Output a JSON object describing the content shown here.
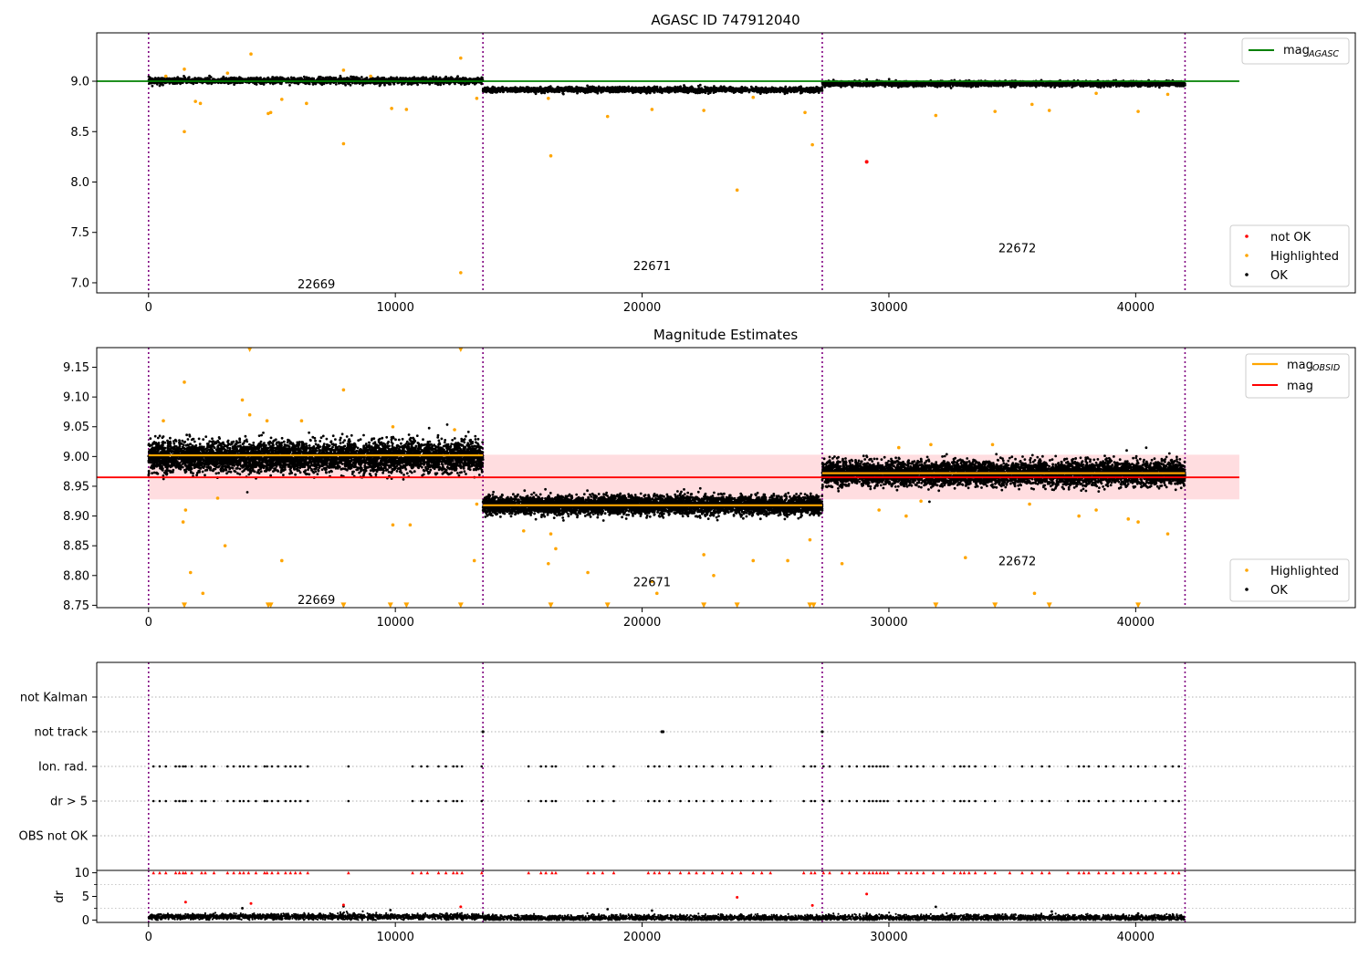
{
  "chart_data": [
    {
      "type": "scatter",
      "title": "AGASC ID 747912040",
      "xlim": [
        -2100,
        48900
      ],
      "ylim": [
        6.9,
        9.48
      ],
      "yticks": [
        7.0,
        7.5,
        8.0,
        8.5,
        9.0
      ],
      "ytick_labels": [
        "7.0",
        "7.5",
        "8.0",
        "8.5",
        "9.0"
      ],
      "xticks": [
        0,
        10000,
        20000,
        30000,
        40000
      ],
      "xtick_labels": [
        "0",
        "10000",
        "20000",
        "30000",
        "40000"
      ],
      "obsid_boundaries": [
        0,
        13550,
        27300,
        42000
      ],
      "obsid_labels": [
        {
          "text": "22669",
          "x": 6800,
          "y": 6.99
        },
        {
          "text": "22671",
          "x": 20400,
          "y": 7.17
        },
        {
          "text": "22672",
          "x": 35200,
          "y": 7.35
        }
      ],
      "reference_line": {
        "name": "mag_AGASC",
        "value": 9.0,
        "x_range": [
          -2100,
          44200
        ],
        "color": "#008000"
      },
      "ok_bands": [
        {
          "x_range": [
            0,
            13550
          ],
          "center": 9.005,
          "spread": 0.03
        },
        {
          "x_range": [
            13550,
            27300
          ],
          "center": 8.915,
          "spread": 0.025
        },
        {
          "x_range": [
            27300,
            42000
          ],
          "center": 8.975,
          "spread": 0.025
        }
      ],
      "not_ok_points": [
        {
          "x": 29100,
          "y": 8.2
        }
      ],
      "highlighted_points": [
        {
          "x": 4150,
          "y": 9.27
        },
        {
          "x": 12650,
          "y": 9.23
        },
        {
          "x": 1450,
          "y": 9.12
        },
        {
          "x": 7900,
          "y": 9.11
        },
        {
          "x": 12650,
          "y": 7.1
        },
        {
          "x": 1450,
          "y": 8.5
        },
        {
          "x": 7900,
          "y": 8.38
        },
        {
          "x": 16300,
          "y": 8.26
        },
        {
          "x": 26900,
          "y": 8.37
        },
        {
          "x": 23850,
          "y": 7.92
        },
        {
          "x": 4850,
          "y": 8.68
        },
        {
          "x": 4950,
          "y": 8.69
        },
        {
          "x": 9850,
          "y": 8.73
        },
        {
          "x": 10450,
          "y": 8.72
        },
        {
          "x": 18600,
          "y": 8.65
        },
        {
          "x": 20400,
          "y": 8.72
        },
        {
          "x": 22500,
          "y": 8.71
        },
        {
          "x": 26600,
          "y": 8.69
        },
        {
          "x": 31900,
          "y": 8.66
        },
        {
          "x": 34300,
          "y": 8.7
        },
        {
          "x": 36500,
          "y": 8.71
        },
        {
          "x": 40100,
          "y": 8.7
        },
        {
          "x": 2100,
          "y": 8.78
        },
        {
          "x": 5400,
          "y": 8.82
        },
        {
          "x": 6400,
          "y": 8.78
        },
        {
          "x": 35800,
          "y": 8.77
        },
        {
          "x": 16200,
          "y": 8.83
        },
        {
          "x": 24500,
          "y": 8.84
        },
        {
          "x": 700,
          "y": 9.05
        },
        {
          "x": 3200,
          "y": 9.08
        },
        {
          "x": 9000,
          "y": 9.05
        },
        {
          "x": 1900,
          "y": 8.8
        },
        {
          "x": 13300,
          "y": 8.83
        },
        {
          "x": 38400,
          "y": 8.88
        },
        {
          "x": 41300,
          "y": 8.87
        }
      ],
      "legends": [
        {
          "location": "upper-right",
          "entries": [
            {
              "label": "mag",
              "sub": "AGASC",
              "kind": "line",
              "color": "#008000"
            }
          ]
        },
        {
          "location": "lower-right",
          "entries": [
            {
              "label": "not OK",
              "kind": "dot",
              "color": "#ff0000"
            },
            {
              "label": "Highlighted",
              "kind": "dot",
              "color": "#ffa500"
            },
            {
              "label": "OK",
              "kind": "dot",
              "color": "#000000"
            }
          ]
        }
      ]
    },
    {
      "type": "scatter",
      "title": "Magnitude Estimates",
      "xlim": [
        -2100,
        48900
      ],
      "ylim": [
        8.746,
        9.183
      ],
      "yticks": [
        8.75,
        8.8,
        8.85,
        8.9,
        8.95,
        9.0,
        9.05,
        9.1,
        9.15
      ],
      "ytick_labels": [
        "8.75",
        "8.80",
        "8.85",
        "8.90",
        "8.95",
        "9.00",
        "9.05",
        "9.10",
        "9.15"
      ],
      "xticks": [
        0,
        10000,
        20000,
        30000,
        40000
      ],
      "xtick_labels": [
        "0",
        "10000",
        "20000",
        "30000",
        "40000"
      ],
      "obsid_boundaries": [
        0,
        13550,
        27300,
        42000
      ],
      "obsid_labels": [
        {
          "text": "22669",
          "x": 6800,
          "y": 8.76
        },
        {
          "text": "22671",
          "x": 20400,
          "y": 8.79
        },
        {
          "text": "22672",
          "x": 35200,
          "y": 8.825
        }
      ],
      "mag_line": {
        "name": "mag",
        "value": 8.965,
        "x_range": [
          -2100,
          44200
        ],
        "color": "#ff0000"
      },
      "mag_band": {
        "low": 8.928,
        "high": 9.003,
        "x_range": [
          0,
          44200
        ],
        "color": "#ffdde0"
      },
      "obsid_mags": [
        {
          "x_range": [
            0,
            13550
          ],
          "value": 9.002
        },
        {
          "x_range": [
            13550,
            27300
          ],
          "value": 8.918
        },
        {
          "x_range": [
            27300,
            42000
          ],
          "value": 8.972
        }
      ],
      "ok_bands": [
        {
          "x_range": [
            0,
            13550
          ],
          "center": 9.0,
          "spread": 0.025
        },
        {
          "x_range": [
            13550,
            27300
          ],
          "center": 8.918,
          "spread": 0.015
        },
        {
          "x_range": [
            27300,
            42000
          ],
          "center": 8.972,
          "spread": 0.02
        }
      ],
      "highlighted_points": [
        {
          "x": 1450,
          "y": 9.125
        },
        {
          "x": 3800,
          "y": 9.095
        },
        {
          "x": 4100,
          "y": 9.07
        },
        {
          "x": 7900,
          "y": 9.112
        },
        {
          "x": 600,
          "y": 9.06
        },
        {
          "x": 4800,
          "y": 9.06
        },
        {
          "x": 6200,
          "y": 9.06
        },
        {
          "x": 9900,
          "y": 9.05
        },
        {
          "x": 12400,
          "y": 9.045
        },
        {
          "x": 1500,
          "y": 8.91
        },
        {
          "x": 1400,
          "y": 8.89
        },
        {
          "x": 3100,
          "y": 8.85
        },
        {
          "x": 1700,
          "y": 8.805
        },
        {
          "x": 2200,
          "y": 8.77
        },
        {
          "x": 5400,
          "y": 8.825
        },
        {
          "x": 9900,
          "y": 8.885
        },
        {
          "x": 10600,
          "y": 8.885
        },
        {
          "x": 13200,
          "y": 8.825
        },
        {
          "x": 15200,
          "y": 8.875
        },
        {
          "x": 16300,
          "y": 8.87
        },
        {
          "x": 16500,
          "y": 8.845
        },
        {
          "x": 16200,
          "y": 8.82
        },
        {
          "x": 17800,
          "y": 8.805
        },
        {
          "x": 20400,
          "y": 8.79
        },
        {
          "x": 20600,
          "y": 8.77
        },
        {
          "x": 22500,
          "y": 8.835
        },
        {
          "x": 22900,
          "y": 8.8
        },
        {
          "x": 24500,
          "y": 8.825
        },
        {
          "x": 25900,
          "y": 8.825
        },
        {
          "x": 26800,
          "y": 8.86
        },
        {
          "x": 28100,
          "y": 8.82
        },
        {
          "x": 29600,
          "y": 8.91
        },
        {
          "x": 30700,
          "y": 8.9
        },
        {
          "x": 31300,
          "y": 8.925
        },
        {
          "x": 33100,
          "y": 8.83
        },
        {
          "x": 35700,
          "y": 8.92
        },
        {
          "x": 35900,
          "y": 8.77
        },
        {
          "x": 37700,
          "y": 8.9
        },
        {
          "x": 38400,
          "y": 8.91
        },
        {
          "x": 39700,
          "y": 8.895
        },
        {
          "x": 40100,
          "y": 8.89
        },
        {
          "x": 41300,
          "y": 8.87
        },
        {
          "x": 31700,
          "y": 9.02
        },
        {
          "x": 34200,
          "y": 9.02
        },
        {
          "x": 30400,
          "y": 9.015
        },
        {
          "x": 13300,
          "y": 8.92
        },
        {
          "x": 2800,
          "y": 8.93
        }
      ],
      "clipped_markers": [
        {
          "x": 4100,
          "y": 9.18
        },
        {
          "x": 12650,
          "y": 9.18
        },
        {
          "x": 1450,
          "y": 8.75
        },
        {
          "x": 4850,
          "y": 8.75
        },
        {
          "x": 4950,
          "y": 8.75
        },
        {
          "x": 7900,
          "y": 8.75
        },
        {
          "x": 9800,
          "y": 8.75
        },
        {
          "x": 10450,
          "y": 8.75
        },
        {
          "x": 12650,
          "y": 8.75
        },
        {
          "x": 16300,
          "y": 8.75
        },
        {
          "x": 18600,
          "y": 8.75
        },
        {
          "x": 22500,
          "y": 8.75
        },
        {
          "x": 23850,
          "y": 8.75
        },
        {
          "x": 26800,
          "y": 8.75
        },
        {
          "x": 26950,
          "y": 8.75
        },
        {
          "x": 31900,
          "y": 8.75
        },
        {
          "x": 34300,
          "y": 8.75
        },
        {
          "x": 36500,
          "y": 8.75
        },
        {
          "x": 40100,
          "y": 8.75
        }
      ],
      "legends": [
        {
          "location": "upper-right",
          "entries": [
            {
              "label": "mag",
              "sub": "OBSID",
              "kind": "line",
              "color": "#ffa500"
            },
            {
              "label": "mag",
              "kind": "line",
              "color": "#ff0000"
            }
          ]
        },
        {
          "location": "lower-right",
          "entries": [
            {
              "label": "Highlighted",
              "kind": "dot",
              "color": "#ffa500"
            },
            {
              "label": "OK",
              "kind": "dot",
              "color": "#000000"
            }
          ]
        }
      ]
    },
    {
      "type": "scatter",
      "title": "",
      "xlim": [
        -2100,
        48900
      ],
      "categories": [
        "not Kalman",
        "not track",
        "Ion. rad.",
        "dr > 5",
        "OBS not OK"
      ],
      "obsid_boundaries": [
        0,
        13550,
        27300,
        42000
      ],
      "flag_points": {
        "not track": [
          13550,
          20800,
          20850,
          27300
        ],
        "Ion. rad.": [
          200,
          450,
          700,
          1100,
          1250,
          1400,
          1500,
          1750,
          2150,
          2300,
          2650,
          3200,
          3450,
          3700,
          3850,
          4050,
          4350,
          4700,
          4800,
          5000,
          5250,
          5550,
          5750,
          5950,
          6150,
          6450,
          8100,
          10700,
          11050,
          11300,
          11750,
          12050,
          12350,
          12500,
          12700,
          13500,
          15400,
          15900,
          16100,
          16350,
          16500,
          17800,
          18050,
          18400,
          18850,
          20250,
          20500,
          20700,
          21100,
          21550,
          21900,
          22200,
          22500,
          22850,
          23250,
          23650,
          24000,
          24500,
          24850,
          25200,
          26550,
          26850,
          27000,
          27350,
          27600,
          28100,
          28400,
          28700,
          29000,
          29200,
          29350,
          29500,
          29650,
          29800,
          29950,
          30400,
          30700,
          30900,
          31150,
          31400,
          31800,
          32200,
          32650,
          32900,
          33050,
          33250,
          33500,
          33900,
          34300,
          34900,
          35400,
          35800,
          36200,
          36500,
          37250,
          37700,
          37900,
          38100,
          38500,
          38800,
          39100,
          39500,
          39800,
          40100,
          40400,
          40800,
          41200,
          41500,
          41750
        ]
      },
      "legends": []
    },
    {
      "type": "scatter",
      "title": "",
      "ylabel": "dr",
      "xlim": [
        -2100,
        48900
      ],
      "ylim": [
        -0.5,
        10.5
      ],
      "yticks": [
        0,
        5,
        10
      ],
      "ytick_labels": [
        "0",
        "5",
        "10"
      ],
      "xticks": [
        0,
        10000,
        20000,
        30000,
        40000
      ],
      "xtick_labels": [
        "0",
        "10000",
        "20000",
        "30000",
        "40000"
      ],
      "obsid_boundaries": [
        0,
        13550,
        27300,
        42000
      ],
      "clipped_value": 10,
      "red_points": [
        {
          "x": 1500,
          "y": 3.8
        },
        {
          "x": 4150,
          "y": 3.5
        },
        {
          "x": 7900,
          "y": 3.2
        },
        {
          "x": 12650,
          "y": 2.8
        },
        {
          "x": 23850,
          "y": 4.8
        },
        {
          "x": 26900,
          "y": 3.1
        },
        {
          "x": 29100,
          "y": 5.5
        }
      ],
      "black_points": [
        {
          "x": 3800,
          "y": 2.5
        },
        {
          "x": 7900,
          "y": 2.9
        },
        {
          "x": 9800,
          "y": 2.1
        },
        {
          "x": 18600,
          "y": 2.3
        },
        {
          "x": 20400,
          "y": 2.0
        },
        {
          "x": 31900,
          "y": 2.8
        },
        {
          "x": 36600,
          "y": 1.8
        },
        {
          "x": 40100,
          "y": 1.4
        }
      ],
      "legends": []
    }
  ]
}
